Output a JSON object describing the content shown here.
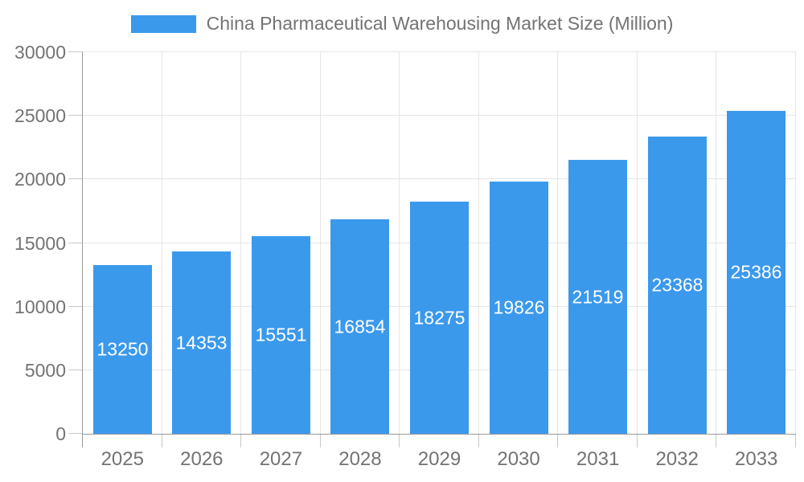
{
  "legend": {
    "label": "China Pharmaceutical Warehousing Market Size (Million)",
    "swatch_color": "#3B99EC"
  },
  "colors": {
    "bar": "#3B99EC",
    "axis_line": "#999999",
    "grid_line": "#e6e6e6",
    "tick_line": "#c8c8c8",
    "tick_label": "#737373",
    "value_label": "#ffffff",
    "background": "#ffffff"
  },
  "chart_data": {
    "type": "bar",
    "title": "China Pharmaceutical Warehousing Market Size (Million)",
    "series_name": "China Pharmaceutical Warehousing Market Size (Million)",
    "categories": [
      "2025",
      "2026",
      "2027",
      "2028",
      "2029",
      "2030",
      "2031",
      "2032",
      "2033"
    ],
    "values": [
      13250,
      14353,
      15551,
      16854,
      18275,
      19826,
      21519,
      23368,
      25386
    ],
    "xlabel": "",
    "ylabel": "",
    "ylim": [
      0,
      30000
    ],
    "ytick_step": 5000,
    "yticks": [
      0,
      5000,
      10000,
      15000,
      20000,
      25000,
      30000
    ],
    "grid": true,
    "legend_position": "top",
    "value_label_position": "inside-center"
  }
}
